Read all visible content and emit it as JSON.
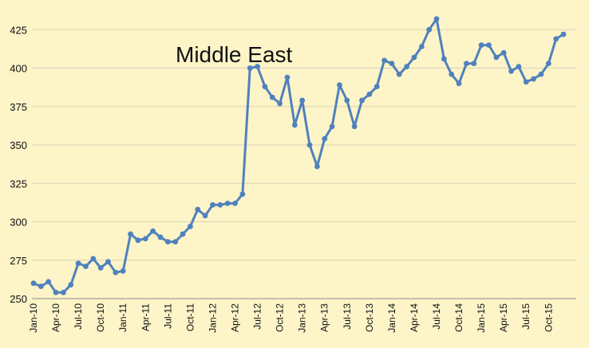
{
  "chart_data": {
    "type": "line",
    "title": "Middle East",
    "xlabel": "",
    "ylabel": "",
    "ylim": [
      250,
      435
    ],
    "yticks": [
      250,
      275,
      300,
      325,
      350,
      375,
      400,
      425
    ],
    "grid": "horizontal",
    "legend": "none",
    "colors": {
      "line": "#4f81bd",
      "grid": "#d9d3b6",
      "background": "#fdf4c8"
    },
    "xtick_labels": [
      "Jan-10",
      "Apr-10",
      "Jul-10",
      "Oct-10",
      "Jan-11",
      "Apr-11",
      "Jul-11",
      "Oct-11",
      "Jan-12",
      "Apr-12",
      "Jul-12",
      "Oct-12",
      "Jan-13",
      "Apr-13",
      "Jul-13",
      "Oct-13",
      "Jan-14",
      "Apr-14",
      "Jul-14",
      "Oct-14",
      "Jan-15",
      "Apr-15",
      "Jul-15",
      "Oct-15"
    ],
    "x": [
      "Jan-10",
      "Feb-10",
      "Mar-10",
      "Apr-10",
      "May-10",
      "Jun-10",
      "Jul-10",
      "Aug-10",
      "Sep-10",
      "Oct-10",
      "Nov-10",
      "Dec-10",
      "Jan-11",
      "Feb-11",
      "Mar-11",
      "Apr-11",
      "May-11",
      "Jun-11",
      "Jul-11",
      "Aug-11",
      "Sep-11",
      "Oct-11",
      "Nov-11",
      "Dec-11",
      "Jan-12",
      "Feb-12",
      "Mar-12",
      "Apr-12",
      "May-12",
      "Jun-12",
      "Jul-12",
      "Aug-12",
      "Sep-12",
      "Oct-12",
      "Nov-12",
      "Dec-12",
      "Jan-13",
      "Feb-13",
      "Mar-13",
      "Apr-13",
      "May-13",
      "Jun-13",
      "Jul-13",
      "Aug-13",
      "Sep-13",
      "Oct-13",
      "Nov-13",
      "Dec-13",
      "Jan-14",
      "Feb-14",
      "Mar-14",
      "Apr-14",
      "May-14",
      "Jun-14",
      "Jul-14",
      "Aug-14",
      "Sep-14",
      "Oct-14",
      "Nov-14",
      "Dec-14",
      "Jan-15",
      "Feb-15",
      "Mar-15",
      "Apr-15",
      "May-15",
      "Jun-15",
      "Jul-15",
      "Aug-15",
      "Sep-15",
      "Oct-15",
      "Nov-15",
      "Dec-15"
    ],
    "values": [
      260,
      258,
      261,
      254,
      254,
      259,
      273,
      271,
      276,
      270,
      274,
      267,
      268,
      292,
      288,
      289,
      294,
      290,
      287,
      287,
      292,
      297,
      308,
      304,
      311,
      311,
      312,
      312,
      318,
      400,
      401,
      388,
      381,
      377,
      394,
      363,
      379,
      350,
      336,
      354,
      362,
      389,
      379,
      362,
      379,
      383,
      388,
      405,
      403,
      396,
      401,
      407,
      414,
      425,
      432,
      406,
      396,
      390,
      403,
      403,
      415,
      415,
      407,
      410,
      398,
      401,
      391,
      393,
      396,
      403,
      419,
      422
    ]
  }
}
